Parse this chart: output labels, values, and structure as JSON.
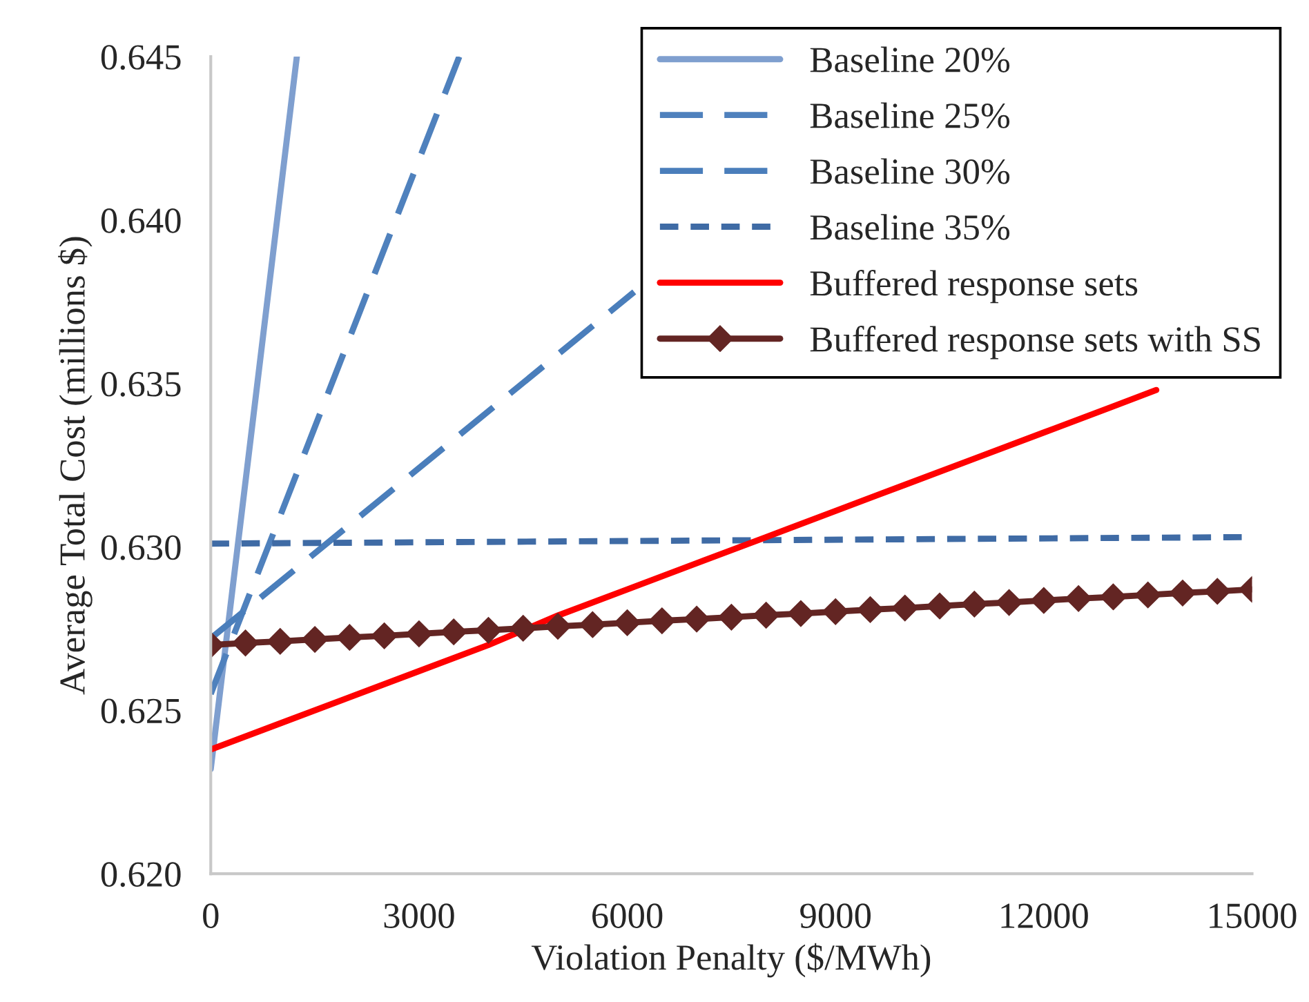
{
  "chart_data": {
    "type": "line",
    "xlabel": "Violation Penalty ($/MWh)",
    "ylabel": "Average Total Cost (millions $)",
    "xlim": [
      0,
      15000
    ],
    "xticks": [
      0,
      3000,
      6000,
      9000,
      12000,
      15000
    ],
    "ylim": [
      0.62,
      0.645
    ],
    "yticks": [
      {
        "value": 0.62,
        "label": "0.620"
      },
      {
        "value": 0.625,
        "label": "0.625"
      },
      {
        "value": 0.63,
        "label": "0.630"
      },
      {
        "value": 0.635,
        "label": "0.635"
      },
      {
        "value": 0.64,
        "label": "0.640"
      },
      {
        "value": 0.645,
        "label": "0.645"
      }
    ],
    "grid": false,
    "legend": "top right",
    "series": [
      {
        "name": "Baseline 20%",
        "color": "#7f9fcf",
        "line_style": "solid",
        "marker": "none",
        "x": [
          0,
          1240
        ],
        "values": [
          0.6232,
          0.645
        ]
      },
      {
        "name": "Baseline 25%",
        "color": "#4f81bd",
        "line_style": "dashed",
        "marker": "none",
        "x": [
          0,
          3580
        ],
        "values": [
          0.6255,
          0.645
        ]
      },
      {
        "name": "Baseline 30%",
        "color": "#4a7ebb",
        "line_style": "dashed",
        "marker": "none",
        "x": [
          0,
          6100
        ],
        "values": [
          0.6272,
          0.6378
        ]
      },
      {
        "name": "Baseline 35%",
        "color": "#3f6ba5",
        "line_style": "dotted",
        "marker": "none",
        "x": [
          0,
          15000
        ],
        "values": [
          0.6301,
          0.6303
        ]
      },
      {
        "name": "Buffered response sets",
        "color": "#ff0000",
        "line_style": "solid",
        "marker": "none",
        "x": [
          0,
          1000,
          2000,
          3000,
          4000,
          5000,
          6000,
          7000,
          8000,
          9000,
          10000,
          11000,
          12000,
          13000,
          13620
        ],
        "values": [
          0.6238,
          0.6246,
          0.6254,
          0.6262,
          0.627,
          0.6279,
          0.6287,
          0.6295,
          0.6303,
          0.6311,
          0.6319,
          0.6327,
          0.6335,
          0.6343,
          0.6348
        ]
      },
      {
        "name": "Buffered response sets with SS",
        "color": "#632523",
        "line_style": "solid",
        "marker": "diamond",
        "x": [
          0,
          500,
          1000,
          1500,
          2000,
          2500,
          3000,
          3500,
          4000,
          4500,
          5000,
          5500,
          6000,
          6500,
          7000,
          7500,
          8000,
          8500,
          9000,
          9500,
          10000,
          10500,
          11000,
          11500,
          12000,
          12500,
          13000,
          13500,
          14000,
          14500,
          15000
        ],
        "values": [
          0.627,
          0.62706,
          0.62711,
          0.62717,
          0.62723,
          0.62728,
          0.62734,
          0.6274,
          0.62745,
          0.62751,
          0.62757,
          0.62762,
          0.62768,
          0.62774,
          0.62779,
          0.62785,
          0.62791,
          0.62796,
          0.62802,
          0.62808,
          0.62813,
          0.62819,
          0.62825,
          0.6283,
          0.62836,
          0.62842,
          0.62847,
          0.62853,
          0.62859,
          0.62864,
          0.6287
        ]
      }
    ]
  }
}
